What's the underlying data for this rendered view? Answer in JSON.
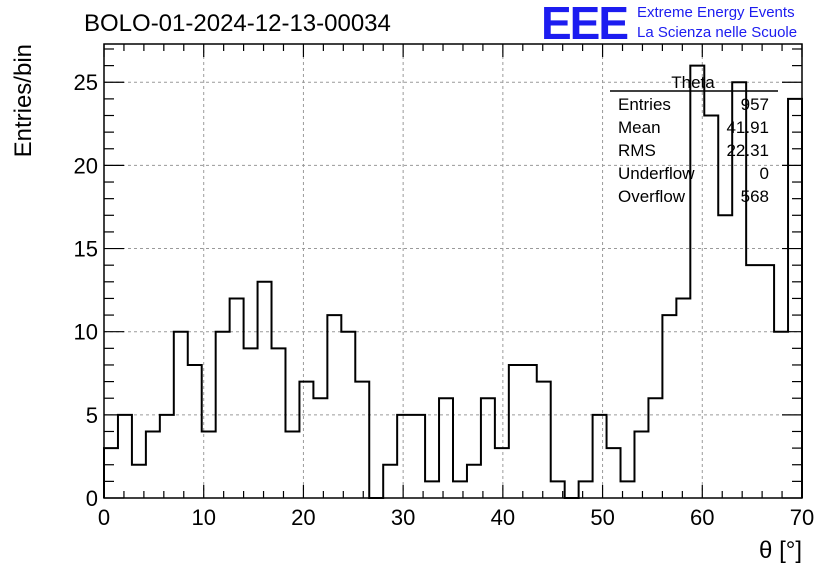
{
  "header": {
    "title": "BOLO-01-2024-12-13-00034",
    "logo_mark": "EEE",
    "logo_line1": "Extreme Energy Events",
    "logo_line2": "La Scienza nelle Scuole",
    "logo_color": "#1c1cf0"
  },
  "chart_data": {
    "type": "histogram",
    "xlabel": "θ [°]",
    "ylabel": "Entries/bin",
    "xlim": [
      0,
      70
    ],
    "ylim": [
      0,
      27.3
    ],
    "xticks": [
      0,
      10,
      20,
      30,
      40,
      50,
      60,
      70
    ],
    "yticks": [
      0,
      5,
      10,
      15,
      20,
      25
    ],
    "grid": true,
    "bin_width": 1.4,
    "bin_start": 0,
    "values": [
      3,
      5,
      2,
      4,
      5,
      10,
      8,
      4,
      10,
      12,
      9,
      13,
      9,
      4,
      7,
      6,
      11,
      10,
      7,
      0,
      2,
      5,
      5,
      1,
      6,
      1,
      2,
      6,
      3,
      8,
      8,
      7,
      1,
      0,
      1,
      5,
      3,
      1,
      4,
      6,
      11,
      12,
      26,
      23,
      17,
      25,
      14,
      14,
      10,
      24
    ],
    "stats_box": {
      "title": "Theta",
      "position": "top-right",
      "rows": [
        {
          "label": "Entries",
          "value": "957"
        },
        {
          "label": "Mean",
          "value": "41.91"
        },
        {
          "label": "RMS",
          "value": "22.31"
        },
        {
          "label": "Underflow",
          "value": "0"
        },
        {
          "label": "Overflow",
          "value": "568"
        }
      ]
    }
  }
}
